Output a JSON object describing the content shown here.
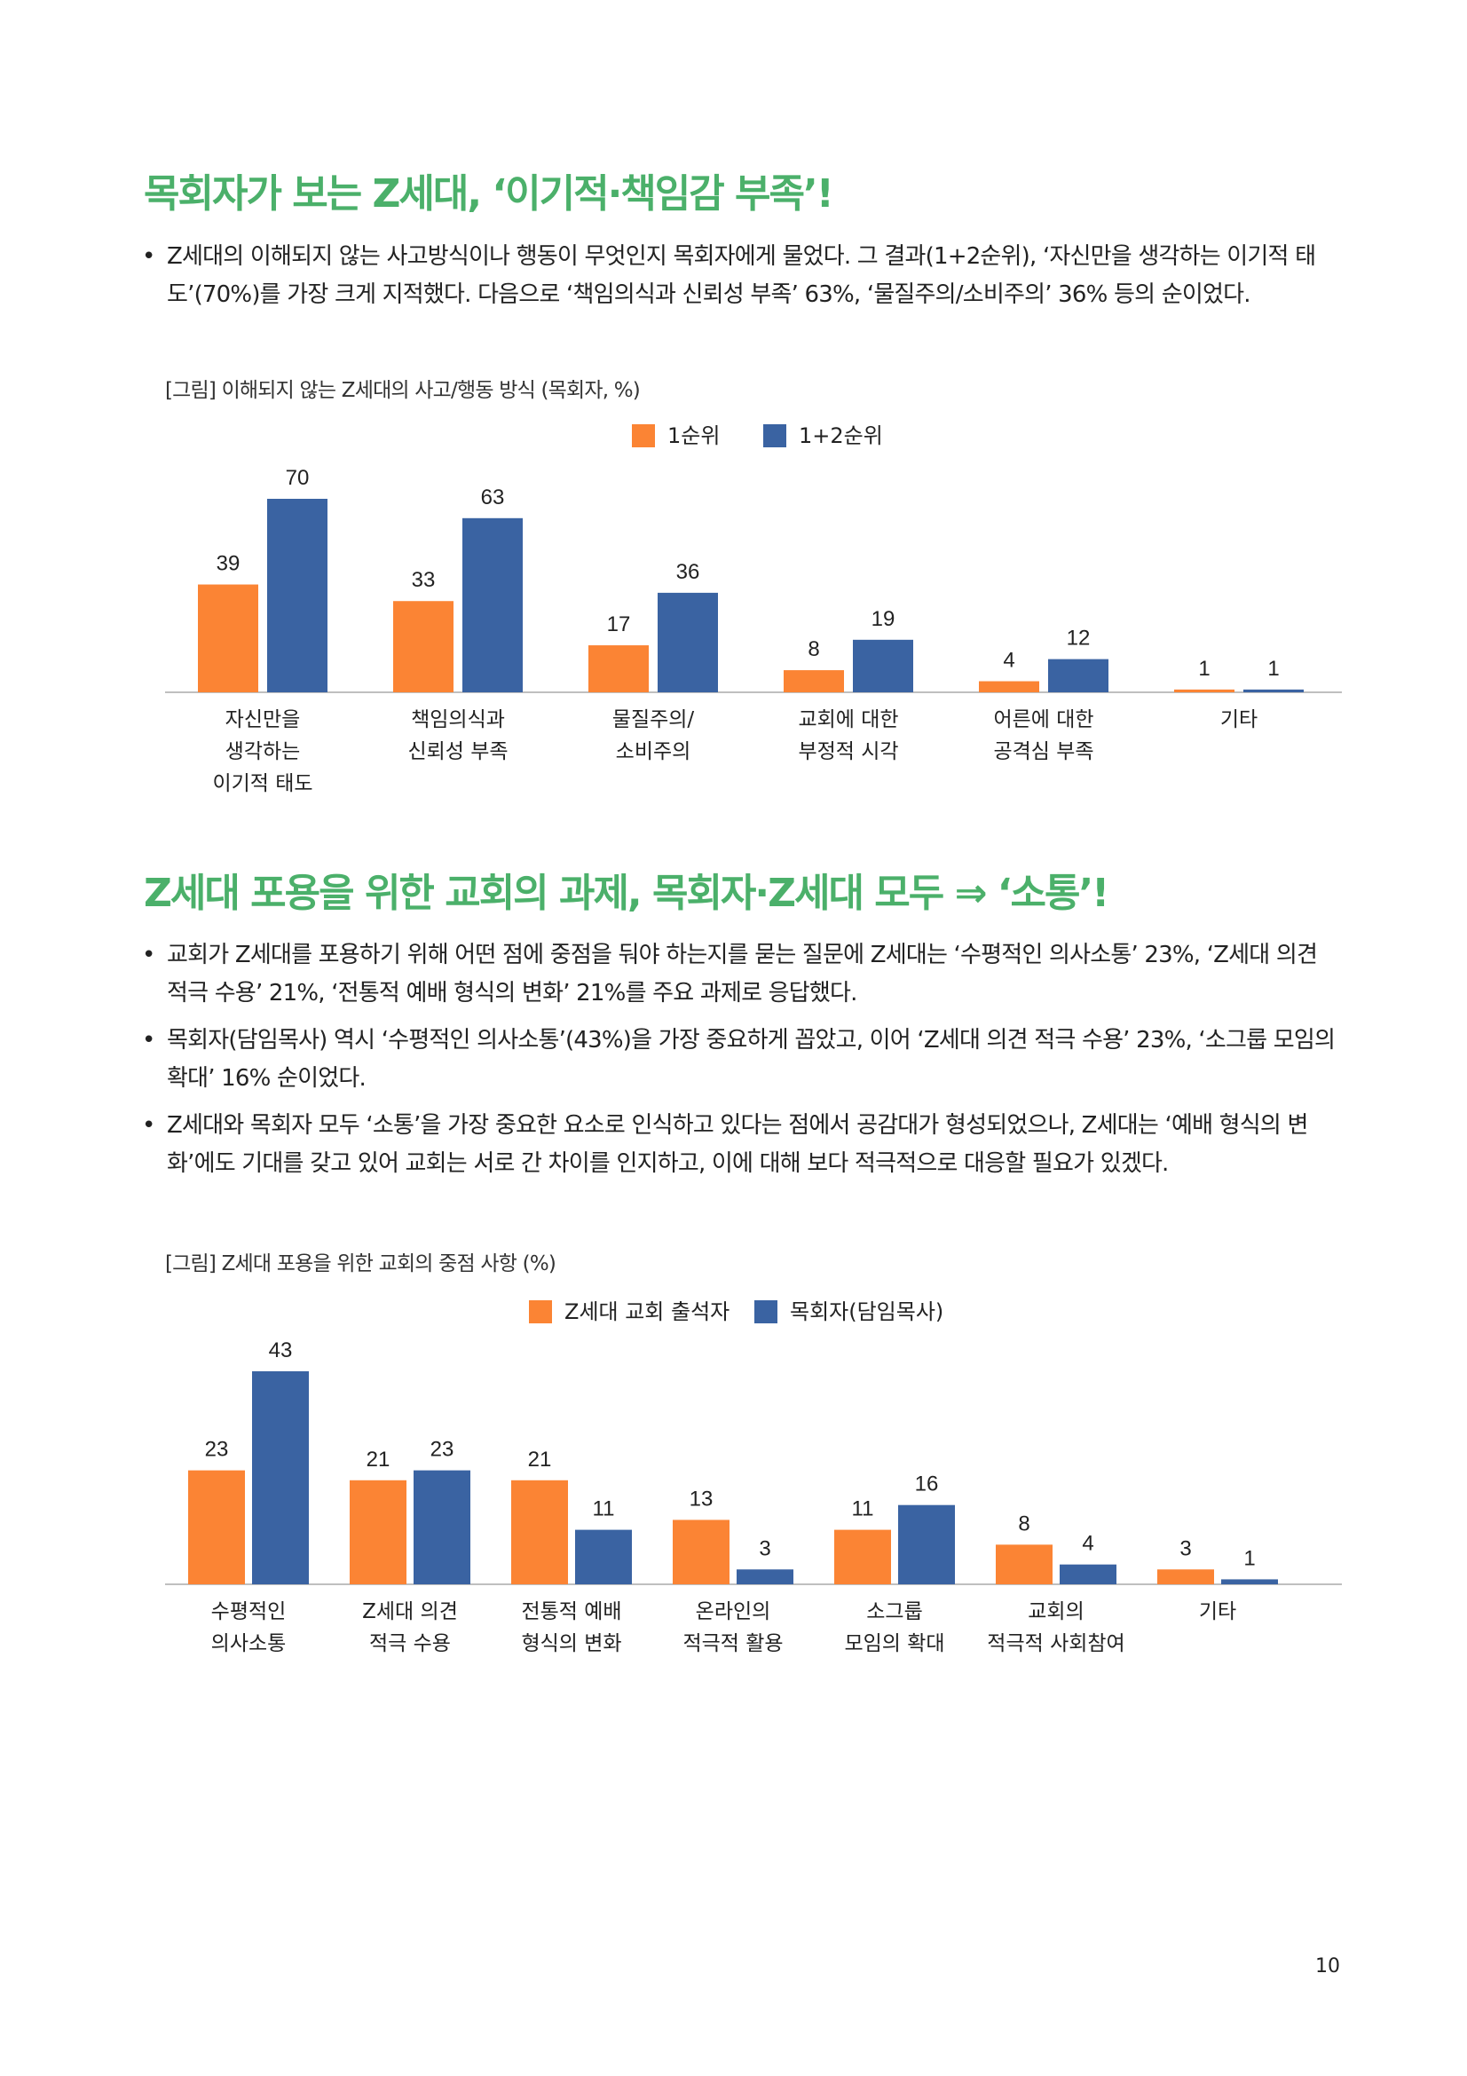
{
  "section1": {
    "heading": "목회자가 보는 Z세대, ‘이기적·책임감 부족’!",
    "bullets": [
      "Z세대의 이해되지 않는 사고방식이나 행동이 무엇인지 목회자에게 물었다. 그 결과(1+2순위), ‘자신만을 생각하는 이기적 태도’(70%)를 가장 크게 지적했다. 다음으로 ‘책임의식과 신뢰성 부족’ 63%, ‘물질주의/소비주의’ 36% 등의 순이었다."
    ],
    "caption": "[그림] 이해되지 않는 Z세대의 사고/행동 방식 (목회자, %)"
  },
  "section2": {
    "heading": "Z세대 포용을 위한 교회의 과제, 목회자·Z세대 모두 ⇒ ‘소통’!",
    "bullets": [
      "교회가 Z세대를 포용하기 위해 어떤 점에 중점을 둬야 하는지를 묻는 질문에 Z세대는 ‘수평적인 의사소통’ 23%, ‘Z세대 의견 적극 수용’ 21%, ‘전통적 예배 형식의 변화’ 21%를 주요 과제로 응답했다.",
      "목회자(담임목사) 역시 ‘수평적인 의사소통’(43%)을 가장 중요하게 꼽았고, 이어 ‘Z세대 의견 적극 수용’ 23%, ‘소그룹 모임의 확대’ 16% 순이었다.",
      "Z세대와 목회자 모두 ‘소통’을 가장 중요한 요소로 인식하고 있다는 점에서 공감대가 형성되었으나, Z세대는 ‘예배 형식의 변화’에도 기대를 갖고 있어 교회는 서로 간 차이를 인지하고, 이에 대해 보다 적극적으로 대응할 필요가 있겠다."
    ],
    "caption": "[그림] Z세대 포용을 위한 교회의 중점 사항 (%)"
  },
  "page_number": "10",
  "colors": {
    "heading": "#4bb06a",
    "orange": "#fb8434",
    "blue": "#3a63a2",
    "axis": "#bfbfbf"
  },
  "chart_data": [
    {
      "type": "bar",
      "title": "",
      "xlabel": "",
      "ylabel": "",
      "ylim": [
        0,
        70
      ],
      "grid": false,
      "legend_position": "top-center",
      "categories": [
        [
          "자신만을",
          "생각하는",
          "이기적 태도"
        ],
        [
          "책임의식과",
          "신뢰성 부족"
        ],
        [
          "물질주의/",
          "소비주의"
        ],
        [
          "교회에 대한",
          "부정적 시각"
        ],
        [
          "어른에 대한",
          "공격심 부족"
        ],
        [
          "기타"
        ]
      ],
      "series": [
        {
          "name": "1순위",
          "color": "#fb8434",
          "values": [
            39,
            33,
            17,
            8,
            4,
            1
          ]
        },
        {
          "name": "1+2순위",
          "color": "#3a63a2",
          "values": [
            70,
            63,
            36,
            19,
            12,
            1
          ]
        }
      ]
    },
    {
      "type": "bar",
      "title": "",
      "xlabel": "",
      "ylabel": "",
      "ylim": [
        0,
        43
      ],
      "grid": false,
      "legend_position": "top-center",
      "categories": [
        [
          "수평적인",
          "의사소통"
        ],
        [
          "Z세대 의견",
          "적극 수용"
        ],
        [
          "전통적 예배",
          "형식의 변화"
        ],
        [
          "온라인의",
          "적극적 활용"
        ],
        [
          "소그룹",
          "모임의 확대"
        ],
        [
          "교회의",
          "적극적 사회참여"
        ],
        [
          "기타"
        ]
      ],
      "series": [
        {
          "name": "Z세대 교회 출석자",
          "color": "#fb8434",
          "values": [
            23,
            21,
            21,
            13,
            11,
            8,
            3
          ]
        },
        {
          "name": "목회자(담임목사)",
          "color": "#3a63a2",
          "values": [
            43,
            23,
            11,
            3,
            16,
            4,
            1
          ]
        }
      ]
    }
  ]
}
